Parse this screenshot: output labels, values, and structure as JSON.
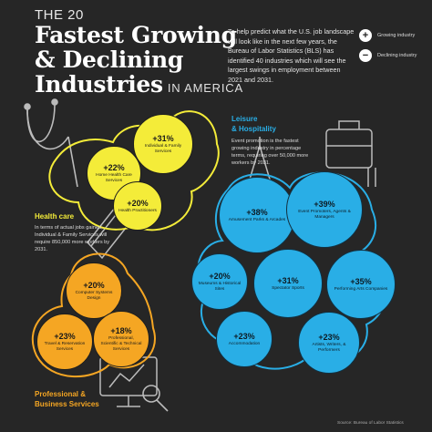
{
  "header": {
    "the_label": "THE 20",
    "line1": "Fastest Growing",
    "line2": "& Declining",
    "line3": "Industries",
    "suffix": "IN AMERICA"
  },
  "intro_text": "To help predict what the U.S. job landscape will look like in the next few years, the Bureau of Labor Statistics (BLS) has identified 40 industries which will see the largest swings in employment between 2021 and 2031.",
  "legend": {
    "growing": {
      "symbol": "+",
      "label": "Growing industry"
    },
    "declining": {
      "symbol": "−",
      "label": "Declining industry"
    }
  },
  "categories": {
    "healthcare": {
      "title": "Health care",
      "desc": "In terms of actual jobs gained, Individual & Family Services will require 850,000 more workers by 2031."
    },
    "leisure": {
      "title_line1": "Leisure",
      "title_line2": "& Hospitality",
      "desc": "Event promotion is the fastest growing industry in percentage terms, requiring over 50,000 more workers by 2031."
    },
    "professional": {
      "title_line1": "Professional &",
      "title_line2": "Business Services"
    }
  },
  "colors": {
    "background": "#262626",
    "healthcare": "#f4ec39",
    "professional": "#f5a623",
    "leisure": "#29aee6"
  },
  "chart_data": {
    "type": "bubble",
    "unit": "% employment growth 2021–2031",
    "groups": [
      {
        "name": "Health care",
        "items": [
          {
            "label": "Individual & Family Services",
            "value": "+31%",
            "value_num": 31
          },
          {
            "label": "Home Health Care Services",
            "value": "+22%",
            "value_num": 22
          },
          {
            "label": "Health Practitioners",
            "value": "+20%",
            "value_num": 20
          }
        ]
      },
      {
        "name": "Professional & Business Services",
        "items": [
          {
            "label": "Computer Systems Design",
            "value": "+20%",
            "value_num": 20
          },
          {
            "label": "Travel & Reservation Services",
            "value": "+23%",
            "value_num": 23
          },
          {
            "label": "Professional, Scientific & Technical Services",
            "value": "+18%",
            "value_num": 18
          }
        ]
      },
      {
        "name": "Leisure & Hospitality",
        "items": [
          {
            "label": "Amusement Parks & Arcades",
            "value": "+38%",
            "value_num": 38
          },
          {
            "label": "Event Promoters, Agents & Managers",
            "value": "+39%",
            "value_num": 39
          },
          {
            "label": "Museums & Historical Sites",
            "value": "+20%",
            "value_num": 20
          },
          {
            "label": "Spectator Sports",
            "value": "+31%",
            "value_num": 31
          },
          {
            "label": "Performing Arts Companies",
            "value": "+35%",
            "value_num": 35
          },
          {
            "label": "Accommodation",
            "value": "+23%",
            "value_num": 23
          },
          {
            "label": "Artists, Writers, & Performers",
            "value": "+23%",
            "value_num": 23
          }
        ]
      }
    ]
  },
  "source": "Source: Bureau of Labor Statistics"
}
